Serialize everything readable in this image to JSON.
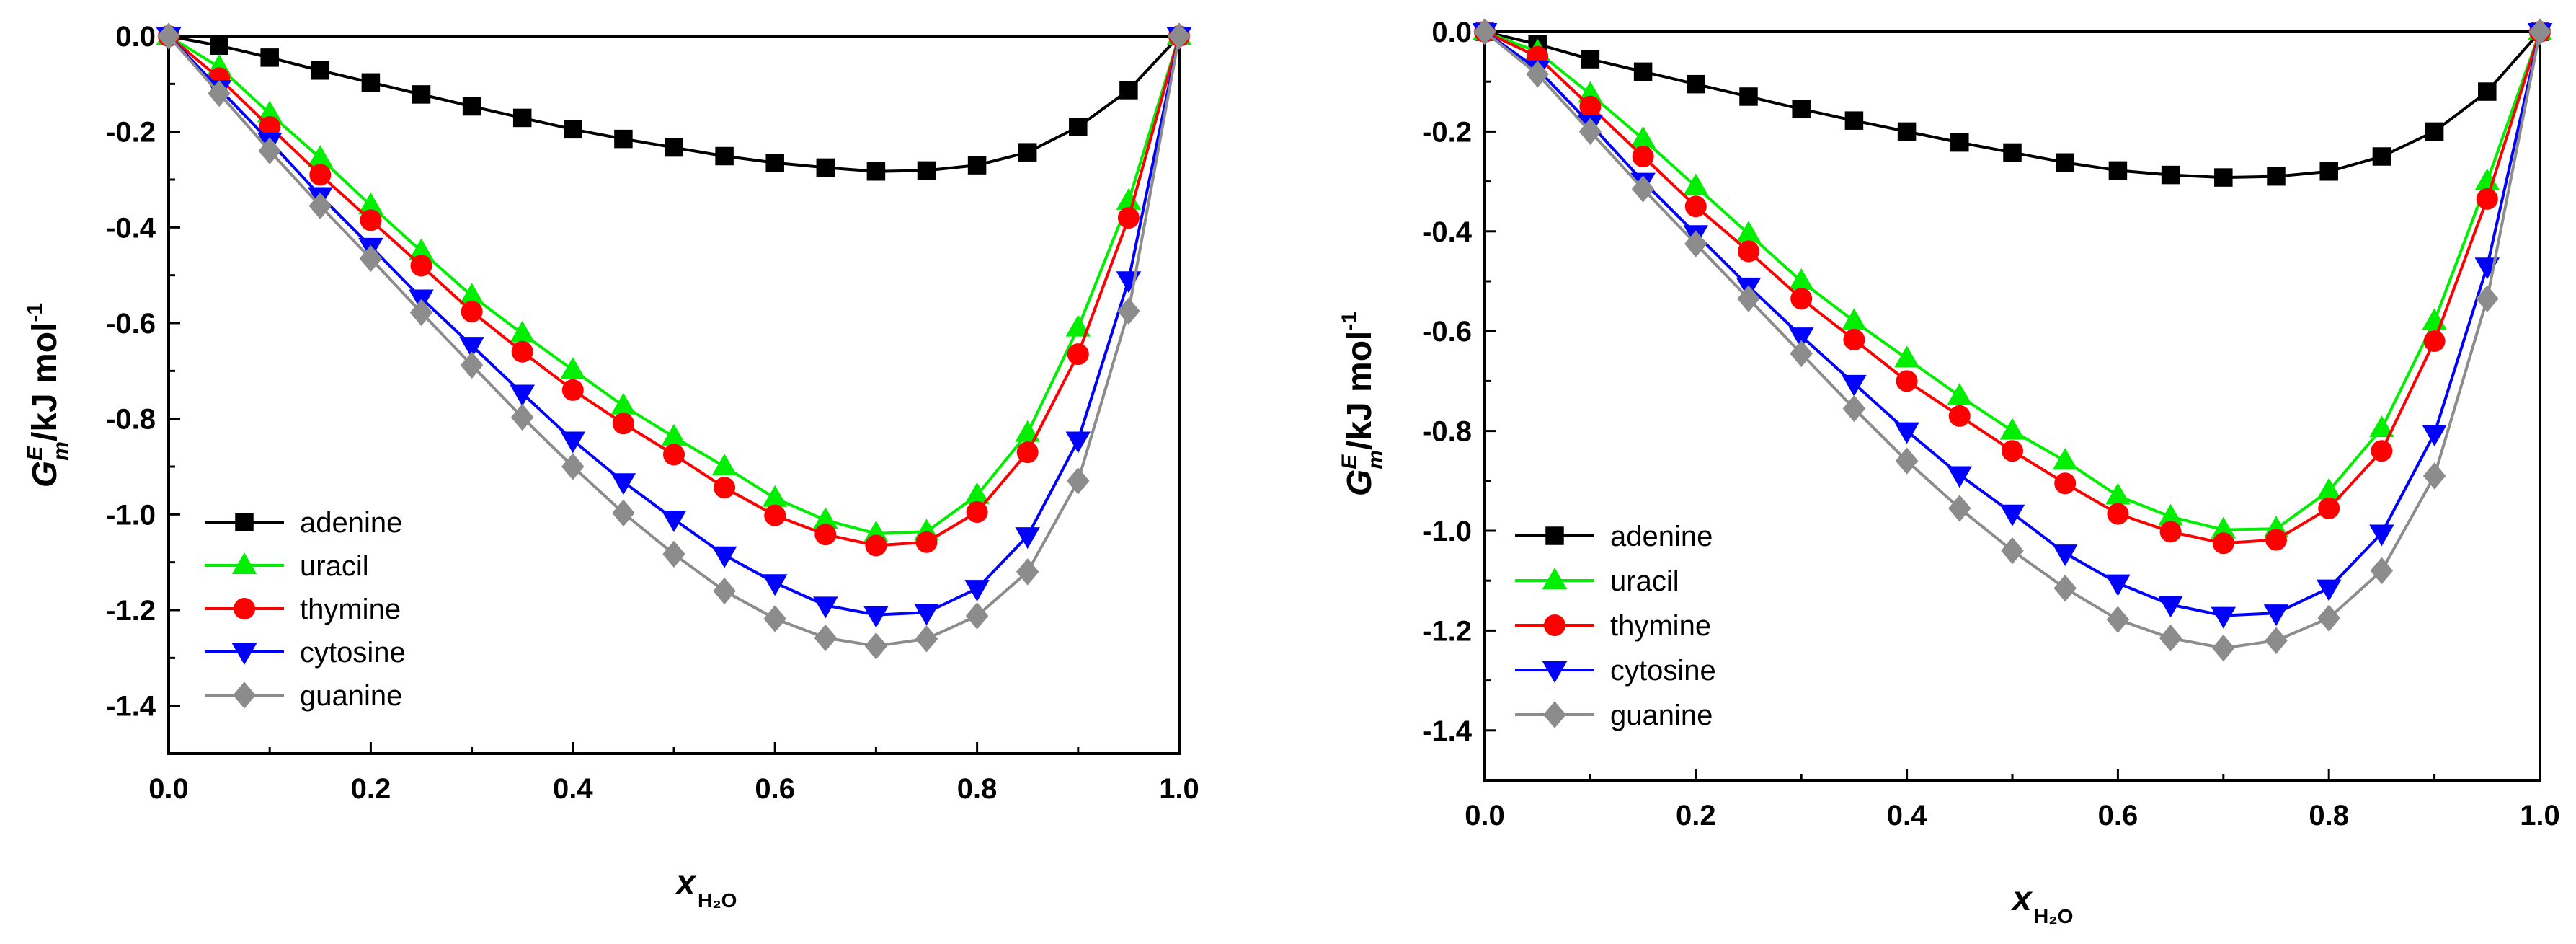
{
  "chart_data": [
    {
      "type": "line",
      "xlabel": "x",
      "xlabel_subscript": "H₂O",
      "ylabel_base": "G",
      "ylabel_sup": "E",
      "ylabel_sub": "m",
      "ylabel_unit": "/kJ mol",
      "ylabel_unit_sup": "-1",
      "xlim": [
        0.0,
        1.0
      ],
      "ylim": [
        -1.5,
        0.0
      ],
      "x_ticks": [
        "0.0",
        "0.2",
        "0.4",
        "0.6",
        "0.8",
        "1.0"
      ],
      "y_ticks": [
        "0.0",
        "-0.2",
        "-0.4",
        "-0.6",
        "-0.8",
        "-1.0",
        "-1.2",
        "-1.4"
      ],
      "legend_position": "bottom-left",
      "grid": false,
      "x": [
        0.0,
        0.05,
        0.1,
        0.15,
        0.2,
        0.25,
        0.3,
        0.35,
        0.4,
        0.45,
        0.5,
        0.55,
        0.6,
        0.65,
        0.7,
        0.75,
        0.8,
        0.85,
        0.9,
        0.95,
        1.0
      ],
      "series": [
        {
          "name": "adenine",
          "color": "#000000",
          "marker": "square",
          "values": [
            0.0,
            -0.02,
            -0.045,
            -0.072,
            -0.097,
            -0.122,
            -0.147,
            -0.171,
            -0.195,
            -0.215,
            -0.233,
            -0.251,
            -0.265,
            -0.275,
            -0.283,
            -0.281,
            -0.27,
            -0.243,
            -0.19,
            -0.113,
            0.0
          ]
        },
        {
          "name": "uracil",
          "color": "#00ee00",
          "marker": "triangle-up",
          "values": [
            0.0,
            -0.065,
            -0.162,
            -0.255,
            -0.354,
            -0.45,
            -0.543,
            -0.622,
            -0.698,
            -0.773,
            -0.838,
            -0.9,
            -0.966,
            -1.012,
            -1.04,
            -1.036,
            -0.96,
            -0.83,
            -0.61,
            -0.345,
            0.0
          ]
        },
        {
          "name": "thymine",
          "color": "#ff0000",
          "marker": "circle",
          "values": [
            0.0,
            -0.088,
            -0.19,
            -0.29,
            -0.385,
            -0.48,
            -0.576,
            -0.66,
            -0.74,
            -0.81,
            -0.875,
            -0.944,
            -1.002,
            -1.042,
            -1.065,
            -1.058,
            -0.995,
            -0.87,
            -0.665,
            -0.38,
            0.0
          ]
        },
        {
          "name": "cytosine",
          "color": "#0000ff",
          "marker": "triangle-down",
          "values": [
            0.0,
            -0.11,
            -0.22,
            -0.334,
            -0.44,
            -0.548,
            -0.647,
            -0.747,
            -0.845,
            -0.932,
            -1.01,
            -1.085,
            -1.143,
            -1.19,
            -1.21,
            -1.205,
            -1.155,
            -1.045,
            -0.845,
            -0.51,
            0.0
          ]
        },
        {
          "name": "guanine",
          "color": "#8c8c8c",
          "marker": "diamond",
          "values": [
            0.0,
            -0.12,
            -0.24,
            -0.355,
            -0.465,
            -0.578,
            -0.688,
            -0.797,
            -0.9,
            -0.997,
            -1.083,
            -1.16,
            -1.218,
            -1.258,
            -1.275,
            -1.26,
            -1.212,
            -1.12,
            -0.93,
            -0.575,
            0.0
          ]
        }
      ]
    },
    {
      "type": "line",
      "xlabel": "x",
      "xlabel_subscript": "H₂O",
      "ylabel_base": "G",
      "ylabel_sup": "E",
      "ylabel_sub": "m",
      "ylabel_unit": "/kJ mol",
      "ylabel_unit_sup": "-1",
      "xlim": [
        0.0,
        1.0
      ],
      "ylim": [
        -1.5,
        0.0
      ],
      "x_ticks": [
        "0.0",
        "0.2",
        "0.4",
        "0.6",
        "0.8",
        "1.0"
      ],
      "y_ticks": [
        "0.0",
        "-0.2",
        "-0.4",
        "-0.6",
        "-0.8",
        "-1.0",
        "-1.2",
        "-1.4"
      ],
      "legend_position": "bottom-left",
      "grid": false,
      "x": [
        0.0,
        0.05,
        0.1,
        0.15,
        0.2,
        0.25,
        0.3,
        0.35,
        0.4,
        0.45,
        0.5,
        0.55,
        0.6,
        0.65,
        0.7,
        0.75,
        0.8,
        0.85,
        0.9,
        0.95,
        1.0
      ],
      "series": [
        {
          "name": "adenine",
          "color": "#000000",
          "marker": "square",
          "values": [
            0.0,
            -0.025,
            -0.055,
            -0.08,
            -0.105,
            -0.13,
            -0.155,
            -0.178,
            -0.2,
            -0.222,
            -0.242,
            -0.262,
            -0.278,
            -0.287,
            -0.292,
            -0.29,
            -0.28,
            -0.25,
            -0.2,
            -0.12,
            0.0
          ]
        },
        {
          "name": "uracil",
          "color": "#00ee00",
          "marker": "triangle-up",
          "values": [
            0.0,
            -0.04,
            -0.125,
            -0.215,
            -0.31,
            -0.405,
            -0.5,
            -0.58,
            -0.655,
            -0.73,
            -0.8,
            -0.86,
            -0.93,
            -0.972,
            -0.998,
            -0.996,
            -0.92,
            -0.795,
            -0.58,
            -0.3,
            0.0
          ]
        },
        {
          "name": "thymine",
          "color": "#ff0000",
          "marker": "circle",
          "values": [
            0.0,
            -0.05,
            -0.15,
            -0.25,
            -0.35,
            -0.44,
            -0.535,
            -0.617,
            -0.7,
            -0.77,
            -0.84,
            -0.905,
            -0.966,
            -1.002,
            -1.025,
            -1.018,
            -0.955,
            -0.84,
            -0.62,
            -0.335,
            0.0
          ]
        },
        {
          "name": "cytosine",
          "color": "#0000ff",
          "marker": "triangle-down",
          "values": [
            0.0,
            -0.075,
            -0.185,
            -0.3,
            -0.405,
            -0.51,
            -0.61,
            -0.705,
            -0.8,
            -0.888,
            -0.965,
            -1.045,
            -1.105,
            -1.148,
            -1.17,
            -1.165,
            -1.115,
            -1.005,
            -0.805,
            -0.47,
            0.0
          ]
        },
        {
          "name": "guanine",
          "color": "#8c8c8c",
          "marker": "diamond",
          "values": [
            0.0,
            -0.085,
            -0.2,
            -0.315,
            -0.425,
            -0.535,
            -0.645,
            -0.755,
            -0.86,
            -0.955,
            -1.04,
            -1.115,
            -1.178,
            -1.215,
            -1.235,
            -1.22,
            -1.175,
            -1.08,
            -0.89,
            -0.535,
            0.0
          ]
        }
      ]
    }
  ]
}
